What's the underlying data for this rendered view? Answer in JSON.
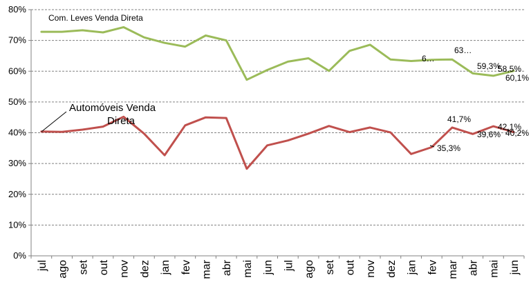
{
  "chart_data": {
    "type": "line",
    "categories": [
      "jul",
      "ago",
      "set",
      "out",
      "nov",
      "dez",
      "jan",
      "fev",
      "mar",
      "abr",
      "mai",
      "jun",
      "jul",
      "ago",
      "set",
      "out",
      "nov",
      "dez",
      "jan",
      "fev",
      "mar",
      "abr",
      "mai",
      "jun"
    ],
    "ylim": [
      0,
      80
    ],
    "yticks": [
      0,
      10,
      20,
      30,
      40,
      50,
      60,
      70,
      80
    ],
    "ytick_labels": [
      "0%",
      "10%",
      "20%",
      "30%",
      "40%",
      "50%",
      "60%",
      "70%",
      "80%"
    ],
    "grid": "horizontal-dashed",
    "series": [
      {
        "name": "Com. Leves Venda Direta",
        "color": "#9BBB59",
        "values": [
          72.8,
          72.8,
          73.3,
          72.6,
          74.3,
          71.0,
          69.2,
          68.0,
          71.6,
          70.0,
          57.2,
          60.4,
          63.1,
          64.2,
          60.1,
          66.6,
          68.6,
          63.8,
          63.3,
          63.7,
          63.8,
          59.3,
          58.5,
          60.1
        ]
      },
      {
        "name": "Automóveis Venda Direta",
        "color": "#C0504D",
        "values": [
          40.4,
          40.3,
          41.0,
          42.0,
          45.2,
          39.7,
          32.7,
          42.4,
          45.0,
          44.8,
          28.3,
          35.9,
          37.5,
          39.7,
          42.2,
          40.2,
          41.7,
          40.1,
          33.1,
          35.3,
          41.7,
          39.6,
          42.1,
          40.2
        ]
      }
    ],
    "annotations": [
      {
        "text": "Com. Leves Venda Direta",
        "color": "#000000"
      },
      {
        "text": "Automóveis Venda",
        "color": "#000000"
      },
      {
        "text": "Direta",
        "color": "#000000"
      },
      {
        "text": "6…",
        "color": "#000000"
      },
      {
        "text": "63…",
        "color": "#000000"
      },
      {
        "text": "59,3%",
        "color": "#000000"
      },
      {
        "text": "58,5%",
        "color": "#000000"
      },
      {
        "text": "60,1%",
        "color": "#000000"
      },
      {
        "text": "41,7%",
        "color": "#000000"
      },
      {
        "text": "42,1%",
        "color": "#000000"
      },
      {
        "text": "39,6%",
        "color": "#000000"
      },
      {
        "text": "40,2%",
        "color": "#000000"
      },
      {
        "text": "35,3%",
        "color": "#000000"
      }
    ]
  }
}
